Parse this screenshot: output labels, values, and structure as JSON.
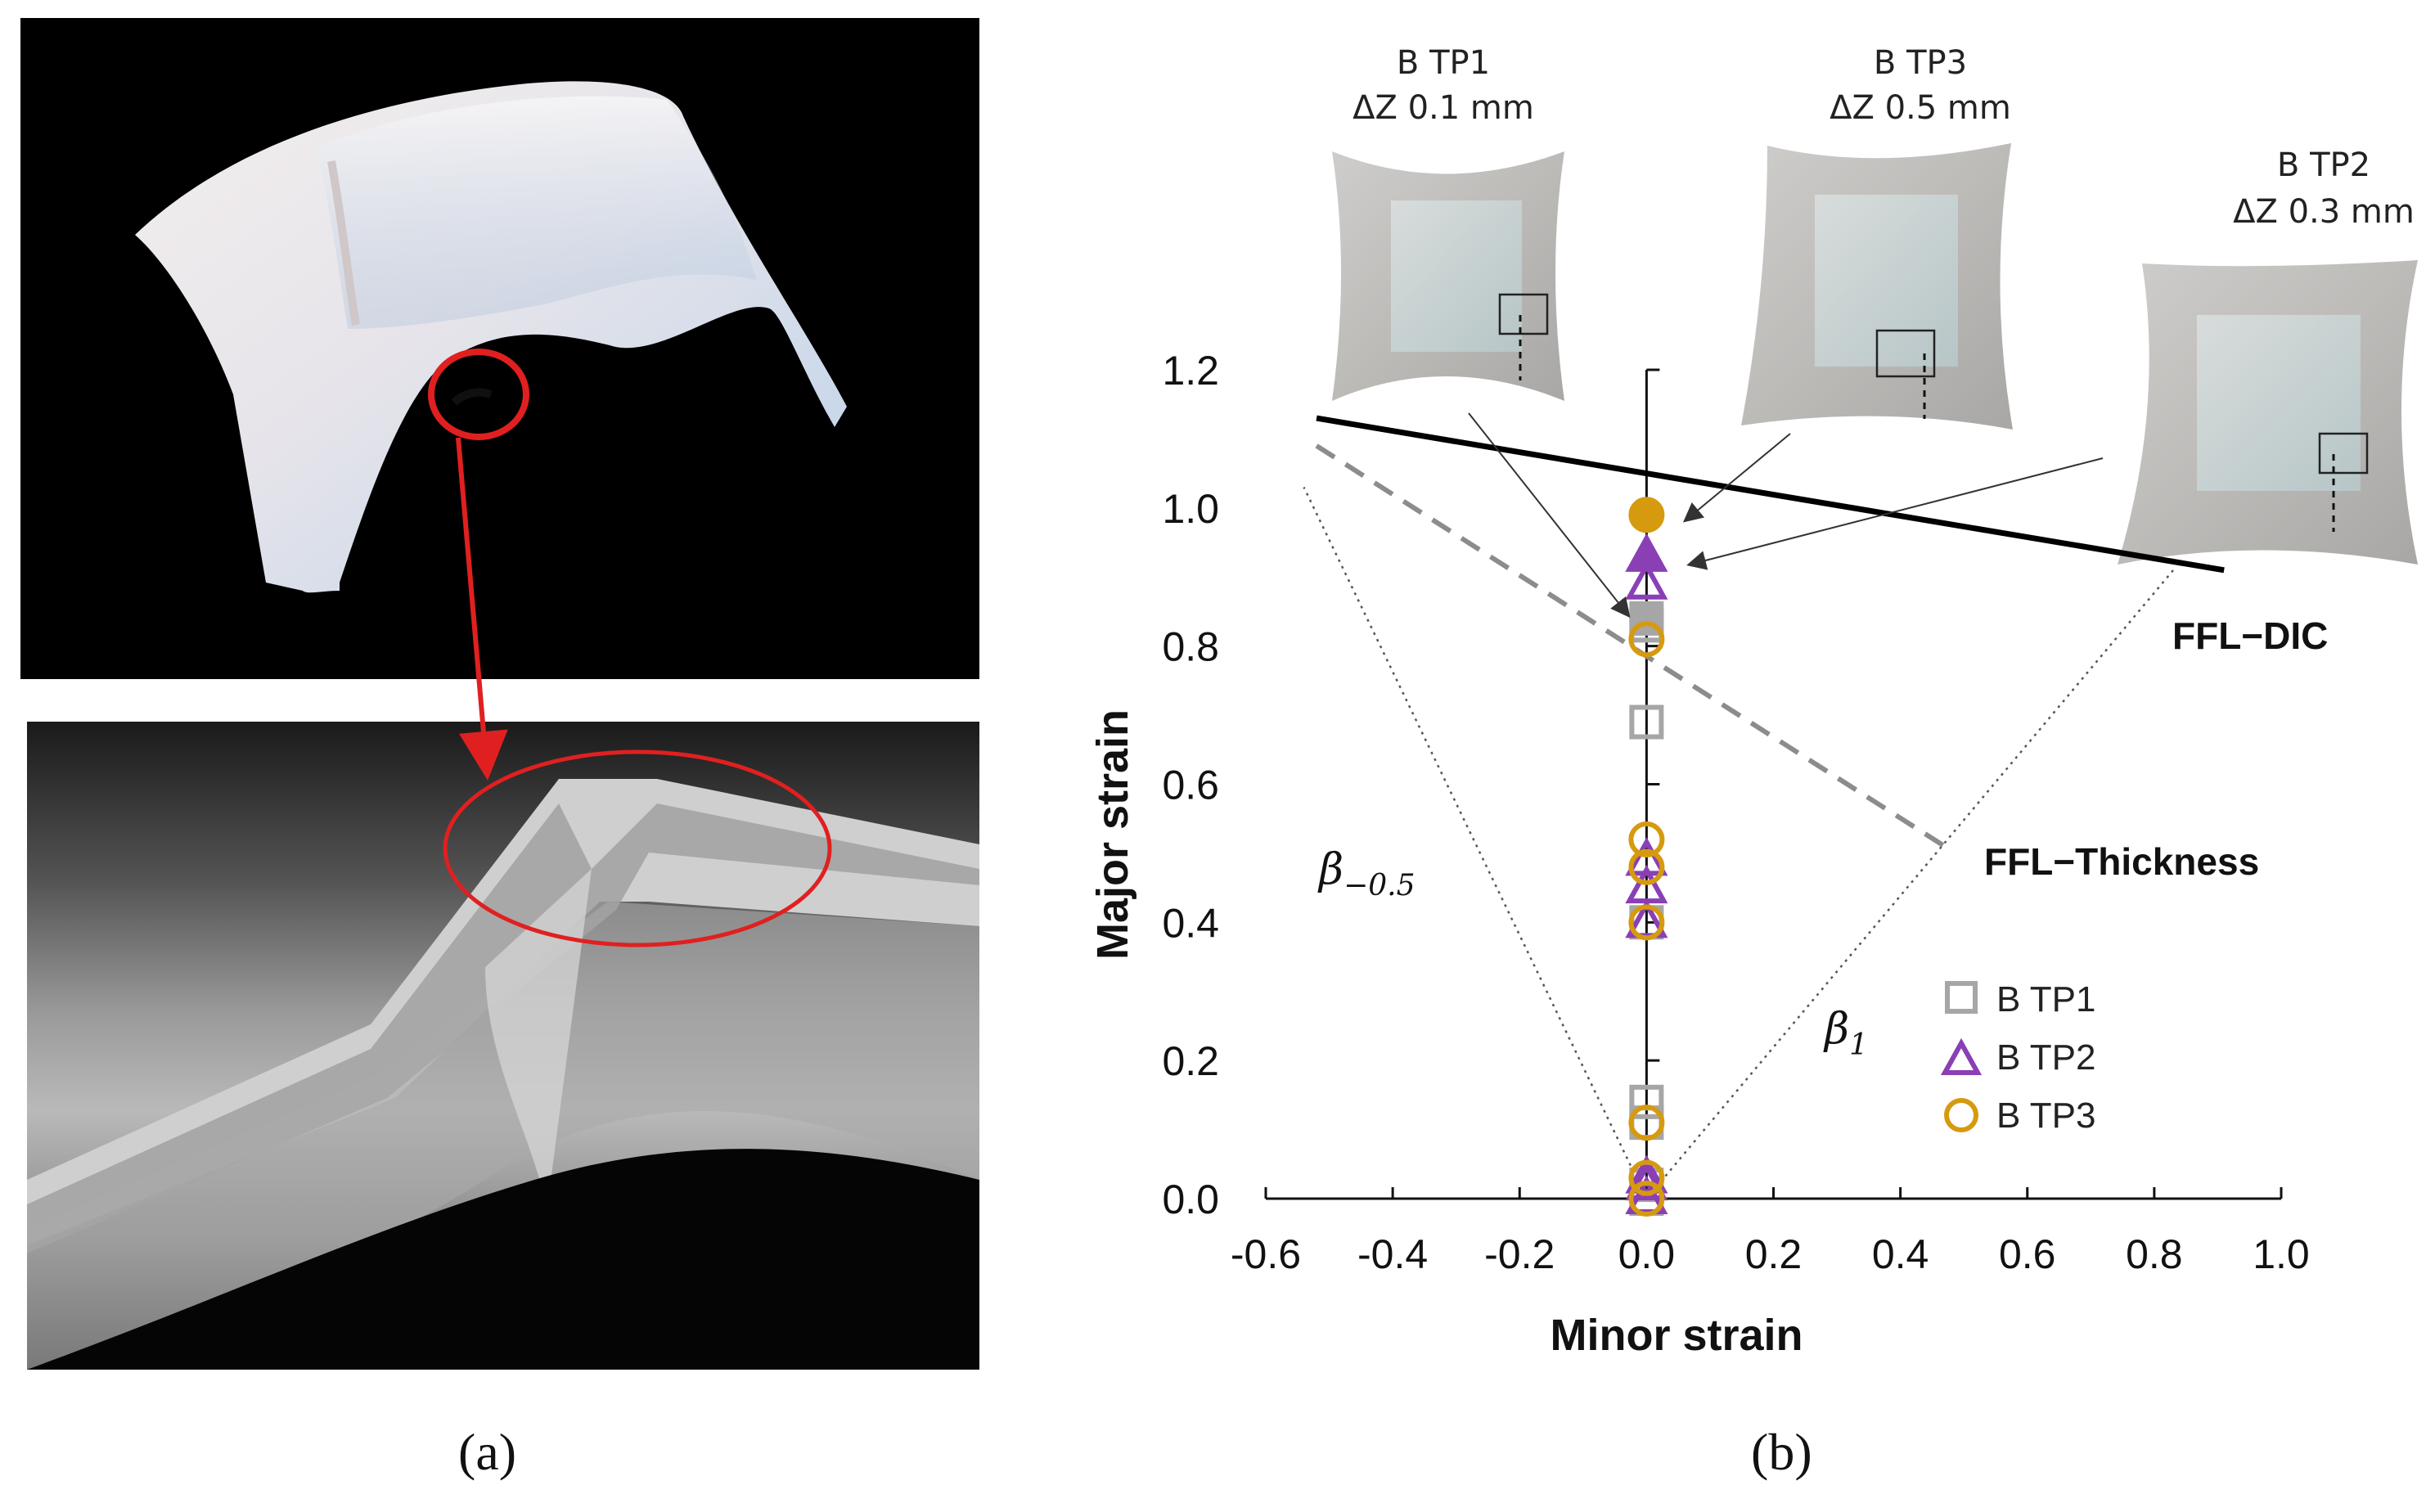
{
  "figure": {
    "panel_a_caption": "(a)",
    "panel_b_caption": "(b)"
  },
  "colors": {
    "tp1": "#a6a6a6",
    "tp2": "#8a3fb5",
    "tp3": "#d69a0f",
    "highlight": "#e02020",
    "ffl_dic": "#000000",
    "ffl_thickness": "#8c8c8c"
  },
  "insets": [
    {
      "id": "tp1",
      "name": "B TP1",
      "dz": "ΔZ 0.1 mm"
    },
    {
      "id": "tp3",
      "name": "B TP3",
      "dz": "ΔZ 0.5 mm"
    },
    {
      "id": "tp2",
      "name": "B TP2",
      "dz": "ΔZ 0.3 mm"
    }
  ],
  "chart_data": {
    "type": "scatter",
    "xlabel": "Minor strain",
    "ylabel": "Major strain",
    "xlim": [
      -0.6,
      1.0
    ],
    "ylim": [
      0.0,
      1.2
    ],
    "xticks": [
      "-0.6",
      "-0.4",
      "-0.2",
      "0.0",
      "0.2",
      "0.4",
      "0.6",
      "0.8",
      "1.0"
    ],
    "yticks": [
      "0.0",
      "0.2",
      "0.4",
      "0.6",
      "0.8",
      "1.0",
      "1.2"
    ],
    "legend_position": "bottom-right",
    "series": [
      {
        "name": "B TP1",
        "marker": "square",
        "color": "#a6a6a6",
        "points": [
          [
            0,
            0.0
          ],
          [
            0,
            0.02
          ],
          [
            0,
            0.11
          ],
          [
            0,
            0.14
          ],
          [
            0,
            0.4
          ],
          [
            0,
            0.69
          ],
          [
            0,
            0.83
          ]
        ],
        "failure": [
          0,
          0.84
        ]
      },
      {
        "name": "B TP2",
        "marker": "triangle",
        "color": "#8a3fb5",
        "points": [
          [
            0,
            0.0
          ],
          [
            0,
            0.02
          ],
          [
            0,
            0.03
          ],
          [
            0,
            0.4
          ],
          [
            0,
            0.45
          ],
          [
            0,
            0.49
          ],
          [
            0,
            0.89
          ]
        ],
        "failure": [
          0,
          0.93
        ]
      },
      {
        "name": "B TP3",
        "marker": "circle",
        "color": "#d69a0f",
        "points": [
          [
            0,
            0.0
          ],
          [
            0,
            0.03
          ],
          [
            0,
            0.11
          ],
          [
            0,
            0.4
          ],
          [
            0,
            0.48
          ],
          [
            0,
            0.52
          ],
          [
            0,
            0.81
          ]
        ],
        "failure": [
          0,
          0.99
        ]
      }
    ],
    "lines": [
      {
        "name": "FFL−DIC",
        "style": "solid",
        "color": "#000000",
        "from": [
          -0.52,
          1.13
        ],
        "to": [
          0.91,
          0.91
        ]
      },
      {
        "name": "FFL−Thickness",
        "style": "dashed",
        "color": "#8c8c8c",
        "from": [
          -0.52,
          1.09
        ],
        "to": [
          0.47,
          0.51
        ]
      },
      {
        "name": "β−0.5",
        "style": "dotted",
        "color": "#555555",
        "from": [
          0,
          0
        ],
        "to": [
          -0.54,
          1.03
        ]
      },
      {
        "name": "β1",
        "style": "dotted",
        "color": "#555555",
        "from": [
          0,
          0
        ],
        "to": [
          0.83,
          0.91
        ]
      }
    ]
  }
}
